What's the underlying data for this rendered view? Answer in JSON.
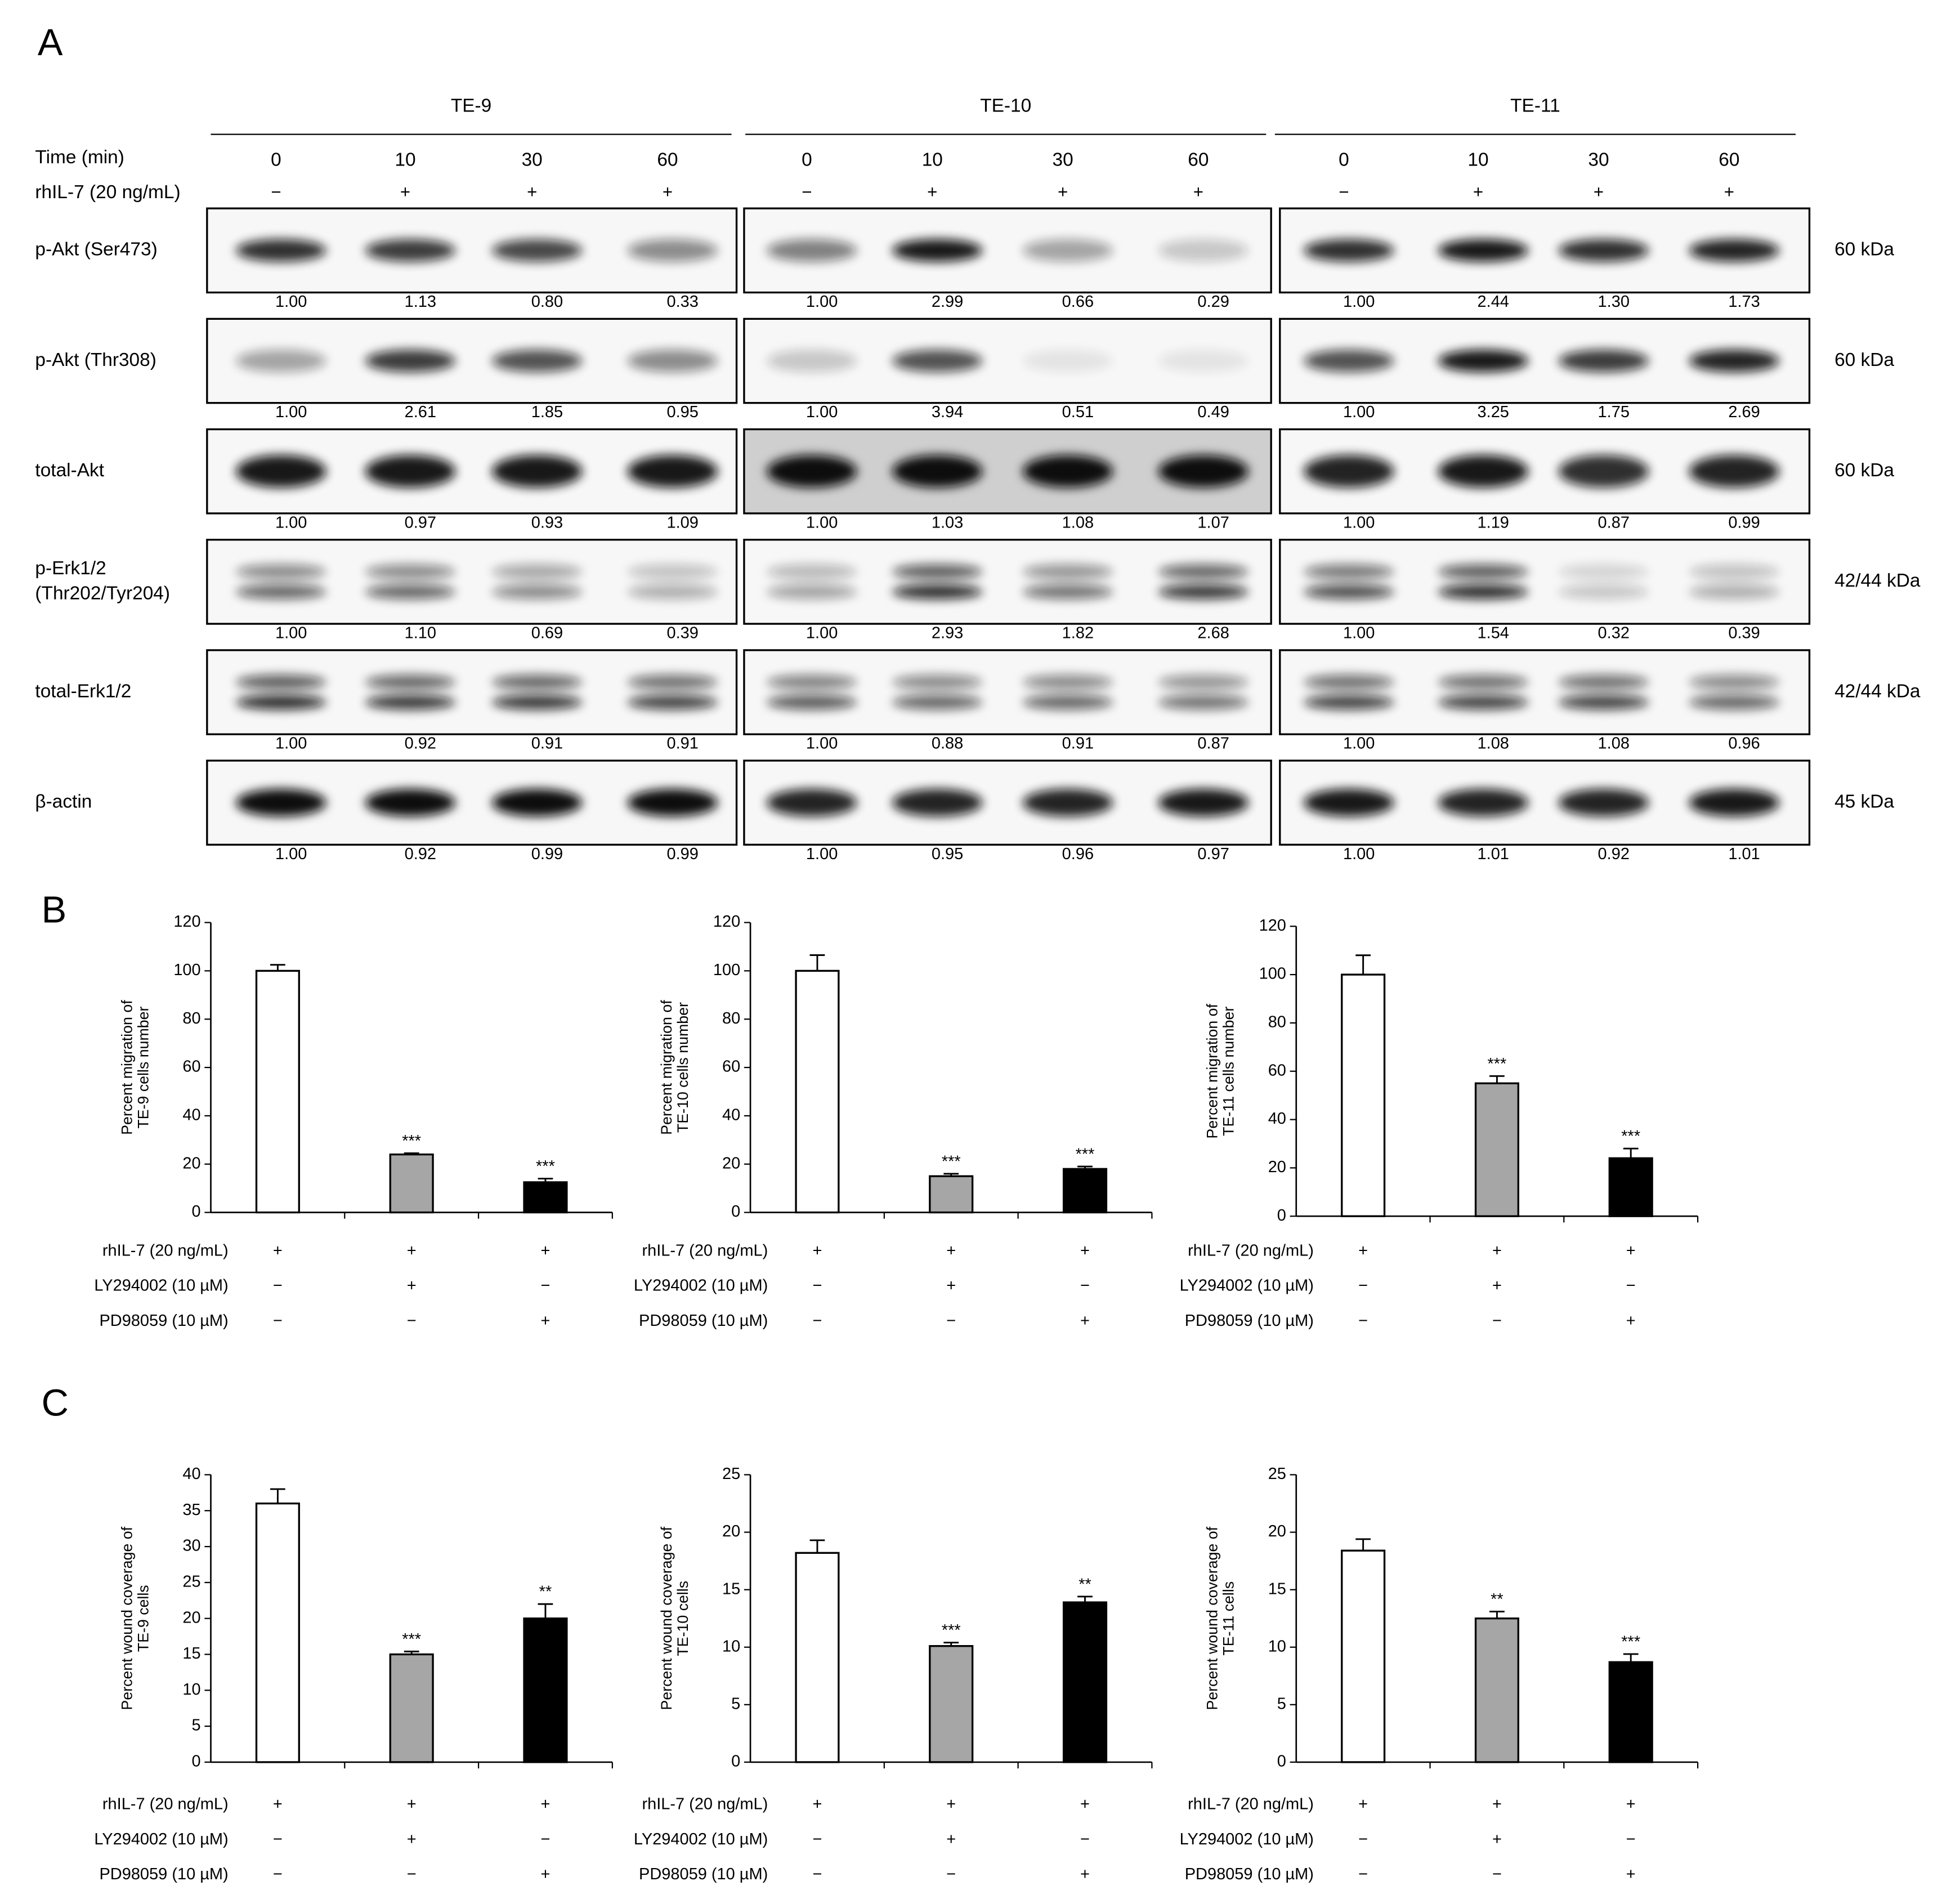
{
  "panel_a": {
    "label": "A",
    "cell_lines": [
      "TE-9",
      "TE-10",
      "TE-11"
    ],
    "time_label": "Time (min)",
    "times": [
      [
        0,
        10,
        30,
        60
      ],
      [
        0,
        10,
        30,
        60
      ],
      [
        0,
        10,
        30,
        60
      ]
    ],
    "treatment_label": "rhIL-7 (20 ng/mL)",
    "treatment_signs": [
      [
        "−",
        "+",
        "+",
        "+"
      ],
      [
        "−",
        "+",
        "+",
        "+"
      ],
      [
        "−",
        "+",
        "+",
        "+"
      ]
    ],
    "blots": [
      {
        "name": [
          "p-Akt (Ser473)"
        ],
        "size": "60 kDa",
        "quantification": [
          [
            "1.00",
            "1.13",
            "0.80",
            "0.33"
          ],
          [
            "1.00",
            "2.99",
            "0.66",
            "0.29"
          ],
          [
            "1.00",
            "2.44",
            "1.30",
            "1.73"
          ]
        ]
      },
      {
        "name": [
          "p-Akt (Thr308)"
        ],
        "size": "60 kDa",
        "quantification": [
          [
            "1.00",
            "2.61",
            "1.85",
            "0.95"
          ],
          [
            "1.00",
            "3.94",
            "0.51",
            "0.49"
          ],
          [
            "1.00",
            "3.25",
            "1.75",
            "2.69"
          ]
        ]
      },
      {
        "name": [
          "total-Akt"
        ],
        "size": "60 kDa",
        "quantification": [
          [
            "1.00",
            "0.97",
            "0.93",
            "1.09"
          ],
          [
            "1.00",
            "1.03",
            "1.08",
            "1.07"
          ],
          [
            "1.00",
            "1.19",
            "0.87",
            "0.99"
          ]
        ]
      },
      {
        "name": [
          "p-Erk1/2",
          "(Thr202/Tyr204)"
        ],
        "size": "42/44 kDa",
        "quantification": [
          [
            "1.00",
            "1.10",
            "0.69",
            "0.39"
          ],
          [
            "1.00",
            "2.93",
            "1.82",
            "2.68"
          ],
          [
            "1.00",
            "1.54",
            "0.32",
            "0.39"
          ]
        ]
      },
      {
        "name": [
          "total-Erk1/2"
        ],
        "size": "42/44 kDa",
        "quantification": [
          [
            "1.00",
            "0.92",
            "0.91",
            "0.91"
          ],
          [
            "1.00",
            "0.88",
            "0.91",
            "0.87"
          ],
          [
            "1.00",
            "1.08",
            "1.08",
            "0.96"
          ]
        ]
      },
      {
        "name": [
          "β-actin"
        ],
        "size": "45 kDa",
        "quantification": [
          [
            "1.00",
            "0.92",
            "0.99",
            "0.99"
          ],
          [
            "1.00",
            "0.95",
            "0.96",
            "0.97"
          ],
          [
            "1.00",
            "1.01",
            "0.92",
            "1.01"
          ]
        ]
      }
    ]
  },
  "panel_b": {
    "label": "B",
    "charts": [
      {
        "type": "bar",
        "ylabel": [
          "Percent migration of",
          "TE-9 cells number"
        ],
        "values": [
          100,
          24,
          12.5
        ],
        "errors": [
          2.5,
          0.5,
          1.5
        ],
        "colors": [
          "#ffffff",
          "#a6a6a6",
          "#000000"
        ],
        "significance": [
          null,
          "***",
          "***"
        ],
        "ylim": [
          0,
          120
        ],
        "yticks": [
          0,
          20,
          40,
          60,
          80,
          100,
          120
        ],
        "conditions": [
          {
            "label": "rhIL-7 (20 ng/mL)",
            "signs": [
              "+",
              "+",
              "+"
            ]
          },
          {
            "label": "LY294002 (10 µM)",
            "signs": [
              "−",
              "+",
              "−"
            ]
          },
          {
            "label": "PD98059 (10 µM)",
            "signs": [
              "−",
              "−",
              "+"
            ]
          }
        ]
      },
      {
        "type": "bar",
        "ylabel": [
          "Percent migration of",
          "TE-10 cells number"
        ],
        "values": [
          100,
          15,
          18
        ],
        "errors": [
          6.5,
          1,
          1
        ],
        "colors": [
          "#ffffff",
          "#a6a6a6",
          "#000000"
        ],
        "significance": [
          null,
          "***",
          "***"
        ],
        "ylim": [
          0,
          120
        ],
        "yticks": [
          0,
          20,
          40,
          60,
          80,
          100,
          120
        ],
        "conditions": [
          {
            "label": "rhIL-7 (20 ng/mL)",
            "signs": [
              "+",
              "+",
              "+"
            ]
          },
          {
            "label": "LY294002 (10 µM)",
            "signs": [
              "−",
              "+",
              "−"
            ]
          },
          {
            "label": "PD98059 (10 µM)",
            "signs": [
              "−",
              "−",
              "+"
            ]
          }
        ]
      },
      {
        "type": "bar",
        "ylabel": [
          "Percent migration of",
          "TE-11 cells number"
        ],
        "values": [
          100,
          55,
          24
        ],
        "errors": [
          8,
          3,
          4
        ],
        "colors": [
          "#ffffff",
          "#a6a6a6",
          "#000000"
        ],
        "significance": [
          null,
          "***",
          "***"
        ],
        "ylim": [
          0,
          120
        ],
        "yticks": [
          0,
          20,
          40,
          60,
          80,
          100,
          120
        ],
        "conditions": [
          {
            "label": "rhIL-7 (20 ng/mL)",
            "signs": [
              "+",
              "+",
              "+"
            ]
          },
          {
            "label": "LY294002 (10 µM)",
            "signs": [
              "−",
              "+",
              "−"
            ]
          },
          {
            "label": "PD98059 (10 µM)",
            "signs": [
              "−",
              "−",
              "+"
            ]
          }
        ]
      }
    ]
  },
  "panel_c": {
    "label": "C",
    "charts": [
      {
        "type": "bar",
        "ylabel": [
          "Percent wound  coverage of",
          "TE-9 cells"
        ],
        "values": [
          36,
          15,
          20
        ],
        "errors": [
          2,
          0.4,
          2
        ],
        "colors": [
          "#ffffff",
          "#a6a6a6",
          "#000000"
        ],
        "significance": [
          null,
          "***",
          "**"
        ],
        "ylim": [
          0,
          40
        ],
        "yticks": [
          0,
          5,
          10,
          15,
          20,
          25,
          30,
          35,
          40
        ],
        "conditions": [
          {
            "label": "rhIL-7 (20 ng/mL)",
            "signs": [
              "+",
              "+",
              "+"
            ]
          },
          {
            "label": "LY294002 (10 µM)",
            "signs": [
              "−",
              "+",
              "−"
            ]
          },
          {
            "label": "PD98059 (10 µM)",
            "signs": [
              "−",
              "−",
              "+"
            ]
          }
        ]
      },
      {
        "type": "bar",
        "ylabel": [
          "Percent wound  coverage of",
          "TE-10 cells"
        ],
        "values": [
          18.2,
          10.1,
          13.9
        ],
        "errors": [
          1.1,
          0.3,
          0.5
        ],
        "colors": [
          "#ffffff",
          "#a6a6a6",
          "#000000"
        ],
        "significance": [
          null,
          "***",
          "**"
        ],
        "ylim": [
          0,
          25
        ],
        "yticks": [
          0,
          5,
          10,
          15,
          20,
          25
        ],
        "conditions": [
          {
            "label": "rhIL-7 (20 ng/mL)",
            "signs": [
              "+",
              "+",
              "+"
            ]
          },
          {
            "label": "LY294002 (10 µM)",
            "signs": [
              "−",
              "+",
              "−"
            ]
          },
          {
            "label": "PD98059 (10 µM)",
            "signs": [
              "−",
              "−",
              "+"
            ]
          }
        ]
      },
      {
        "type": "bar",
        "ylabel": [
          "Percent wound  coverage of",
          "TE-11 cells"
        ],
        "values": [
          18.4,
          12.5,
          8.7
        ],
        "errors": [
          1,
          0.6,
          0.7
        ],
        "colors": [
          "#ffffff",
          "#a6a6a6",
          "#000000"
        ],
        "significance": [
          null,
          "**",
          "***"
        ],
        "ylim": [
          0,
          25
        ],
        "yticks": [
          0,
          5,
          10,
          15,
          20,
          25
        ],
        "conditions": [
          {
            "label": "rhIL-7 (20 ng/mL)",
            "signs": [
              "+",
              "+",
              "+"
            ]
          },
          {
            "label": "LY294002 (10 µM)",
            "signs": [
              "−",
              "+",
              "−"
            ]
          },
          {
            "label": "PD98059 (10 µM)",
            "signs": [
              "−",
              "−",
              "+"
            ]
          }
        ]
      }
    ]
  }
}
